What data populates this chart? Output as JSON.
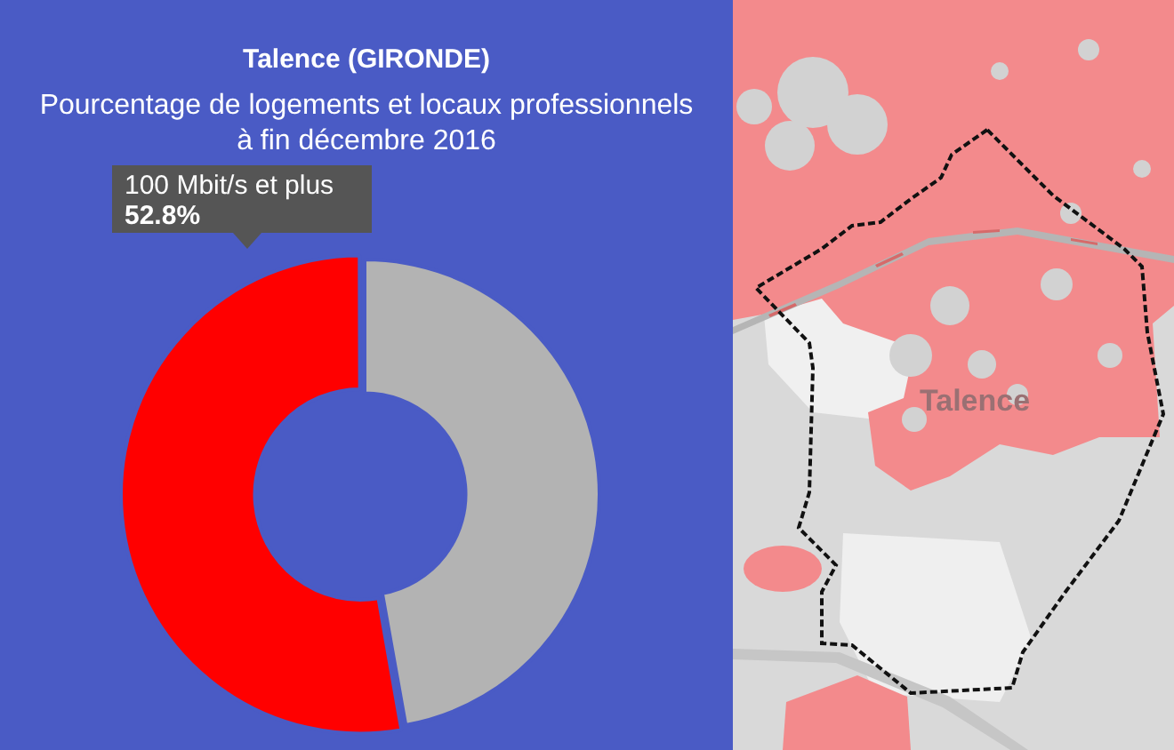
{
  "chart_data": {
    "type": "donut",
    "title": "Talence (GIRONDE)",
    "subtitle": "Pourcentage de logements et locaux professionnels à fin décembre 2016",
    "categories": [
      null,
      "100 Mbit/s et plus"
    ],
    "values": [
      47.2,
      52.8
    ],
    "colors": [
      "#b3b3b3",
      "#ff0000"
    ],
    "value_labels": [
      null,
      "52.8%"
    ],
    "annotations": [
      "Talence"
    ]
  }
}
